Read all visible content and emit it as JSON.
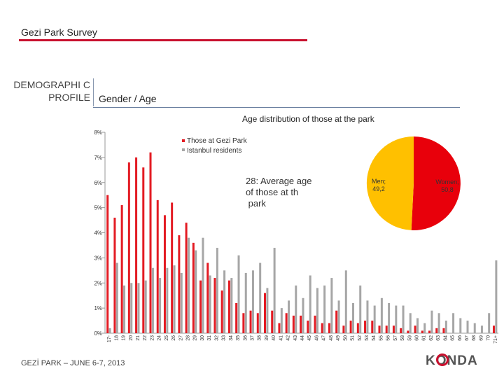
{
  "header": {
    "title": "Gezi Park Survey",
    "section": "DEMOGRAPHI C PROFILE",
    "subtitle": "Gender / Age"
  },
  "footer": {
    "text": "GEZİ PARK – JUNE 6-7, 2013",
    "logo": "KONDA"
  },
  "colors": {
    "gezi": "#e31b23",
    "istanbul": "#a6a6a6",
    "men": "#ffc000",
    "women": "#e8000b",
    "accent": "#c8102e"
  },
  "chart_data": [
    {
      "type": "bar",
      "title": "Age distribution of those at the park",
      "ylim": [
        0,
        8
      ],
      "yticks": [
        "0%",
        "1%",
        "2%",
        "3%",
        "4%",
        "5%",
        "6%",
        "7%",
        "8%"
      ],
      "categories": [
        "17-",
        "18",
        "19",
        "20",
        "21",
        "22",
        "23",
        "24",
        "25",
        "26",
        "27",
        "28",
        "29",
        "30",
        "31",
        "32",
        "33",
        "34",
        "35",
        "36",
        "37",
        "38",
        "39",
        "40",
        "41",
        "42",
        "43",
        "44",
        "45",
        "46",
        "47",
        "48",
        "49",
        "50",
        "51",
        "52",
        "53",
        "54",
        "55",
        "56",
        "57",
        "58",
        "59",
        "60",
        "61",
        "62",
        "63",
        "64",
        "65",
        "66",
        "67",
        "68",
        "69",
        "70",
        "71+"
      ],
      "series": [
        {
          "name": "Those at Gezi Park",
          "values": [
            5.5,
            4.6,
            5.1,
            6.8,
            7.0,
            6.6,
            7.2,
            5.3,
            4.7,
            5.2,
            3.9,
            4.4,
            3.6,
            2.1,
            2.8,
            2.2,
            1.7,
            2.1,
            1.2,
            0.8,
            0.9,
            0.8,
            1.6,
            0.9,
            0.4,
            0.8,
            0.7,
            0.7,
            0.5,
            0.7,
            0.4,
            0.4,
            0.9,
            0.3,
            0.5,
            0.4,
            0.5,
            0.5,
            0.3,
            0.3,
            0.3,
            0.2,
            0.1,
            0.3,
            0.1,
            0.1,
            0.2,
            0.2,
            0.0,
            0.0,
            0.0,
            0.0,
            0.0,
            0.0,
            0.3
          ]
        },
        {
          "name": "Istanbul residents",
          "values": [
            0.2,
            2.8,
            1.9,
            2.0,
            2.0,
            2.1,
            2.6,
            2.2,
            2.6,
            2.7,
            2.4,
            3.8,
            3.3,
            3.8,
            2.3,
            3.4,
            2.5,
            2.2,
            3.1,
            2.4,
            2.5,
            2.8,
            1.8,
            3.4,
            1.0,
            1.3,
            1.9,
            1.4,
            2.3,
            1.8,
            1.9,
            2.2,
            1.3,
            2.5,
            1.2,
            1.9,
            1.3,
            1.1,
            1.4,
            1.2,
            1.1,
            1.1,
            0.8,
            0.6,
            0.4,
            0.9,
            0.8,
            0.5,
            0.8,
            0.6,
            0.5,
            0.4,
            0.3,
            0.8,
            2.9
          ]
        }
      ],
      "annotation": "28: Average age of those at the park"
    },
    {
      "type": "pie",
      "slices": [
        {
          "label": "Men",
          "value": 49.2,
          "text": "Men; 49,2"
        },
        {
          "label": "Women",
          "value": 50.8,
          "text": "Women; 50,8"
        }
      ]
    }
  ]
}
